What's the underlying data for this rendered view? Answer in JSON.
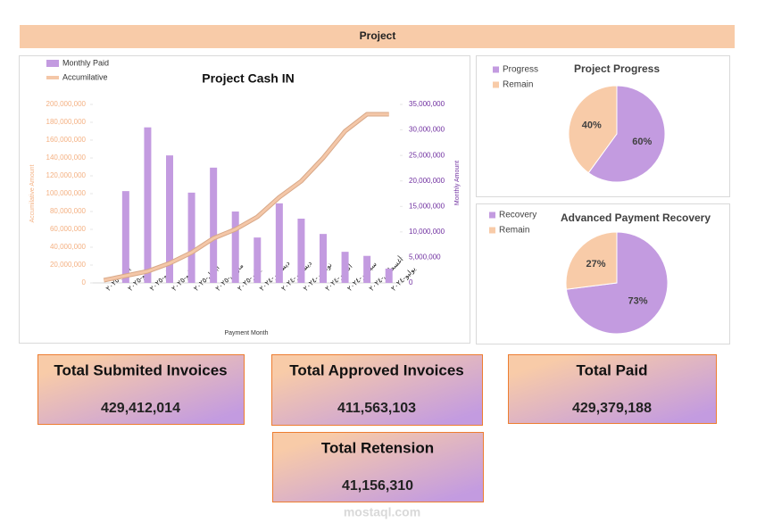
{
  "header": {
    "title": "Project"
  },
  "chart_data": [
    {
      "type": "bar",
      "title": "Project Cash IN",
      "x_label": "Payment Month",
      "y_label": "Accumilative Amount",
      "y2_label": "Monthly Amount",
      "categories": [
        "يوليو-٢٠٢٥",
        "يونيو-٢٠٢٥",
        "مايو-٢٠٢٥",
        "مايو-٢٠٢٥",
        "أبريل-٢٠٢٥",
        "مارس-٢٠٢٥",
        "يناير-٢٠٢٥",
        "ديسمبر-٢٠٢٤",
        "ديسمبر-٢٠٢٤",
        "نوفمبر-٢٠٢٤",
        "أكتوبر-٢٠٢٤",
        "سبتمبر-٢٠٢٤",
        "أغسطس-٢٠٢٤",
        "يوليو-٢٠٢٤"
      ],
      "series": [
        {
          "name": "Monthly Paid",
          "type": "bar",
          "axis": "y2",
          "color": "#c39be0",
          "values": [
            0,
            18000000,
            30500000,
            25000000,
            17700000,
            22600000,
            14000000,
            8900000,
            15600000,
            12600000,
            9600000,
            6100000,
            5300000,
            2800000
          ]
        },
        {
          "name": "Accumilative",
          "type": "line",
          "color": "#f4c7a8",
          "values": [
            3000000,
            8000000,
            13000000,
            22000000,
            34000000,
            50000000,
            60000000,
            74000000,
            96000000,
            114000000,
            140000000,
            170000000,
            189000000,
            189000000
          ]
        }
      ],
      "ylim": [
        0,
        200000000
      ],
      "yticks": [
        0,
        {
          "value": 20000000,
          "label": "20,000,000"
        },
        {
          "value": 40000000,
          "label": "40,000,000"
        },
        {
          "value": 60000000,
          "label": "60,000,000"
        },
        {
          "value": 80000000,
          "label": "80,000,000"
        },
        {
          "value": 100000000,
          "label": "100,000,000"
        },
        {
          "value": 120000000,
          "label": "120,000,000"
        },
        {
          "value": 140000000,
          "label": "140,000,000"
        },
        {
          "value": 160000000,
          "label": "160,000,000"
        },
        {
          "value": 180000000,
          "label": "180,000,000"
        },
        {
          "value": 200000000,
          "label": "200,000,000"
        }
      ],
      "y2lim": [
        0,
        35000000
      ],
      "y2ticks": [
        0,
        {
          "value": 5000000,
          "label": "5,000,000"
        },
        {
          "value": 10000000,
          "label": "10,000,000"
        },
        {
          "value": 15000000,
          "label": "15,000,000"
        },
        {
          "value": 20000000,
          "label": "20,000,000"
        },
        {
          "value": 25000000,
          "label": "25,000,000"
        },
        {
          "value": 30000000,
          "label": "30,000,000"
        },
        {
          "value": 35000000,
          "label": "35,000,000"
        }
      ],
      "legend": "top-left"
    },
    {
      "type": "pie",
      "title": "Project Progress",
      "categories": [
        "Progress",
        "Remain"
      ],
      "values": [
        60,
        40
      ],
      "value_labels": [
        "60%",
        "40%"
      ],
      "colors": [
        "#c39be0",
        "#f8cba8"
      ]
    },
    {
      "type": "pie",
      "title": "Advanced Payment Recovery",
      "categories": [
        "Recovery",
        "Remain"
      ],
      "values": [
        73,
        27
      ],
      "value_labels": [
        "73%",
        "27%"
      ],
      "colors": [
        "#c39be0",
        "#f8cba8"
      ]
    }
  ],
  "cards": [
    {
      "title": "Total Submited Invoices",
      "value": "429,412,014"
    },
    {
      "title": "Total Approved Invoices",
      "value": "411,563,103"
    },
    {
      "title": "Total Paid",
      "value": "429,379,188"
    },
    {
      "title": "Total Retension",
      "value": "41,156,310"
    }
  ],
  "watermark": "mostaql.com"
}
